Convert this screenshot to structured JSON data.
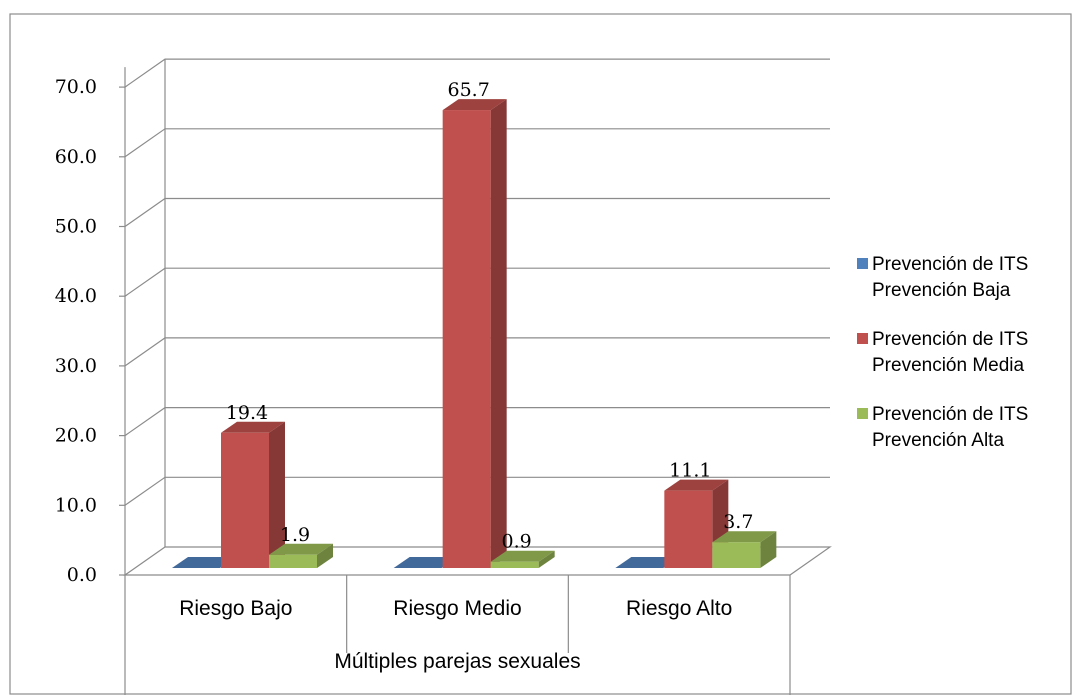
{
  "chart_data": {
    "type": "bar",
    "categories": [
      "Riesgo Bajo",
      "Riesgo Medio",
      "Riesgo Alto"
    ],
    "xlabel": "Múltiples parejas sexuales",
    "ylabel": "",
    "title": "",
    "ylim": [
      0,
      70
    ],
    "yticks": [
      "0.0",
      "10.0",
      "20.0",
      "30.0",
      "40.0",
      "50.0",
      "60.0",
      "70.0"
    ],
    "grid": true,
    "legend_position": "right",
    "series": [
      {
        "name": "Prevención de ITS Prevención Baja",
        "legend_lines": [
          "Prevención de ITS",
          "Prevención Baja"
        ],
        "color": "#4F81BD",
        "values": [
          0,
          0,
          0
        ],
        "labels": [
          "",
          "",
          ""
        ]
      },
      {
        "name": "Prevención de ITS Prevención Media",
        "legend_lines": [
          "Prevención de ITS",
          "Prevención Media"
        ],
        "color": "#C0504D",
        "values": [
          19.4,
          65.7,
          11.1
        ],
        "labels": [
          "19.4",
          "65.7",
          "11.1"
        ]
      },
      {
        "name": "Prevención de ITS Prevención Alta",
        "legend_lines": [
          "Prevención de ITS",
          "Prevención Alta"
        ],
        "color": "#9BBB59",
        "values": [
          1.9,
          0.9,
          3.7
        ],
        "labels": [
          "1.9",
          "0.9",
          "3.7"
        ]
      }
    ]
  }
}
